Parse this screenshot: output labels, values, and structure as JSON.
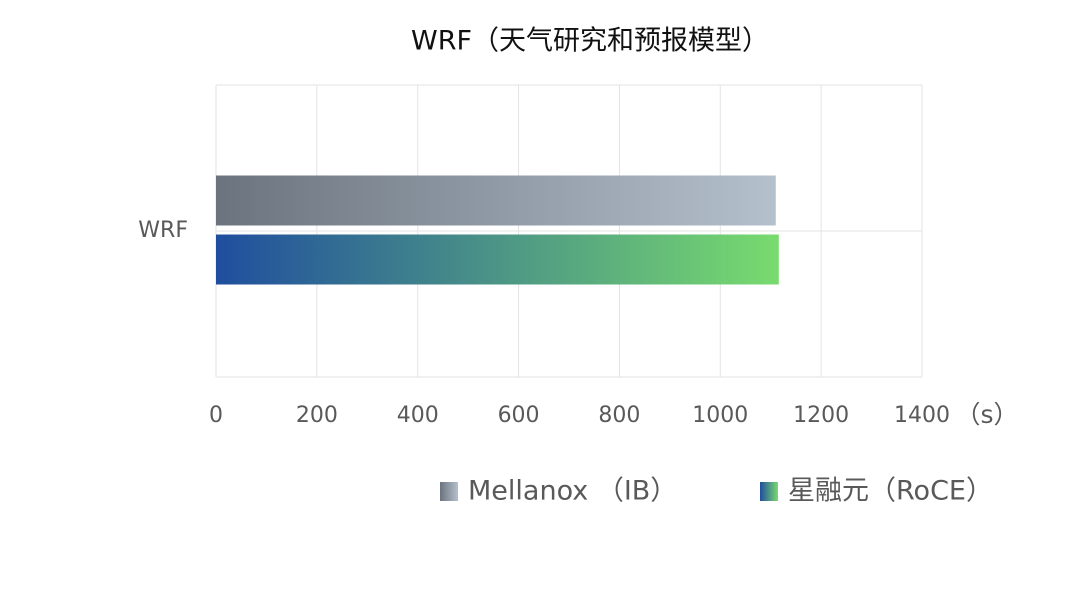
{
  "chart_data": {
    "type": "bar",
    "orientation": "horizontal",
    "title": "WRF（天气研究和预报模型）",
    "categories": [
      "WRF"
    ],
    "series": [
      {
        "name": "Mellanox （IB）",
        "gradient": [
          "#6b747e",
          "#b5c0cd"
        ],
        "values": [
          1110
        ]
      },
      {
        "name": "星融元（RoCE）",
        "gradient": [
          "#1f4e9e",
          "#78db6e"
        ],
        "values": [
          1116
        ]
      }
    ],
    "x_label": "（s）",
    "xlim": [
      0,
      1400
    ],
    "xticks": [
      0,
      200,
      400,
      600,
      800,
      1000,
      1200,
      1400
    ],
    "grid": true,
    "legend": "bottom"
  }
}
